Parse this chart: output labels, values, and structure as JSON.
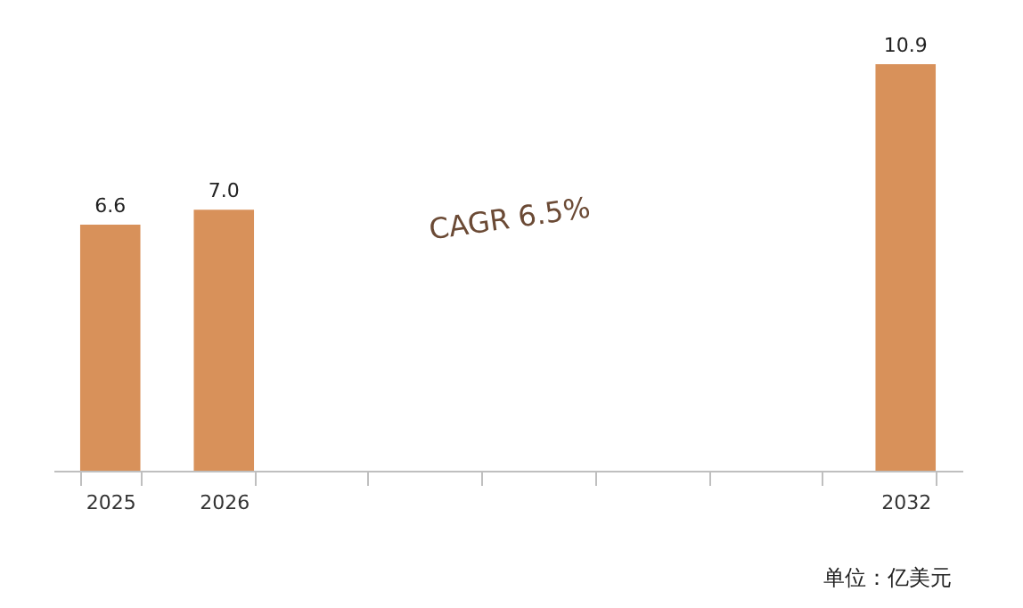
{
  "chart_data": {
    "type": "bar",
    "categories": [
      "2025",
      "2026",
      null,
      null,
      null,
      null,
      null,
      "2032"
    ],
    "values": [
      6.6,
      7.0,
      null,
      null,
      null,
      null,
      null,
      10.9
    ],
    "color": "#d8915a",
    "value_labels": [
      "6.6",
      "7.0",
      null,
      null,
      null,
      null,
      null,
      "10.9"
    ],
    "grid": false,
    "tick_labels": "x",
    "annotations": [
      "CAGR  6.5%",
      "单位：亿美元"
    ]
  }
}
